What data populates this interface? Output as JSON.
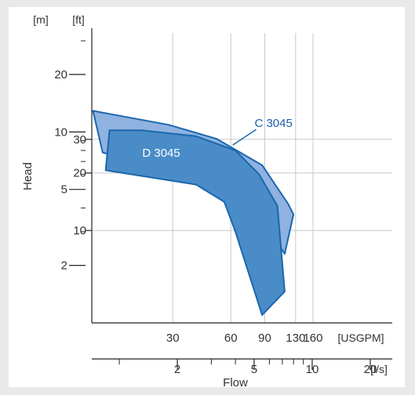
{
  "chart_data": {
    "type": "area",
    "title": "",
    "xlabel": "Flow",
    "ylabel": "Head",
    "scale": "log-log",
    "grid": true,
    "x_axes": [
      {
        "unit": "[USGPM]",
        "ticks": [
          30,
          60,
          90,
          130,
          160
        ]
      },
      {
        "unit": "[l/s]",
        "ticks": [
          2,
          5,
          10,
          20
        ]
      }
    ],
    "y_axes": [
      {
        "unit": "[m]",
        "ticks": [
          2,
          5,
          10,
          20
        ]
      },
      {
        "unit": "[ft]",
        "ticks": [
          10,
          20,
          30
        ]
      }
    ],
    "xlim_ls": [
      0.72,
      26
    ],
    "ylim_m": [
      1.0,
      33
    ],
    "colors": {
      "C_fill": "#8fb2e0",
      "D_fill": "#4a8cc8",
      "stroke": "#1b67ad",
      "label": "#1b5ea8",
      "grid": "#c9c9c9",
      "axis": "#222222"
    },
    "series": [
      {
        "name": "C 3045",
        "polygon_ls_m": [
          [
            0.73,
            12.9
          ],
          [
            1.8,
            10.9
          ],
          [
            3.2,
            9.2
          ],
          [
            5.5,
            6.7
          ],
          [
            7.5,
            4.2
          ],
          [
            8.0,
            3.7
          ],
          [
            7.2,
            2.3
          ],
          [
            5.5,
            3.5
          ],
          [
            3.5,
            5.2
          ],
          [
            1.8,
            6.3
          ],
          [
            0.82,
            7.8
          ],
          [
            0.73,
            12.9
          ]
        ],
        "label_at": [
          6.3,
          10.6
        ]
      },
      {
        "name": "D 3045",
        "polygon_ls_m": [
          [
            0.89,
            10.2
          ],
          [
            1.3,
            10.2
          ],
          [
            2.5,
            9.5
          ],
          [
            4.0,
            8.0
          ],
          [
            5.3,
            6.0
          ],
          [
            6.6,
            4.1
          ],
          [
            7.2,
            1.46
          ],
          [
            5.5,
            1.1
          ],
          [
            4.0,
            3.0
          ],
          [
            3.5,
            4.3
          ],
          [
            2.5,
            5.3
          ],
          [
            0.85,
            6.3
          ],
          [
            0.89,
            10.2
          ]
        ],
        "label_at": [
          1.65,
          7.4
        ]
      }
    ]
  }
}
